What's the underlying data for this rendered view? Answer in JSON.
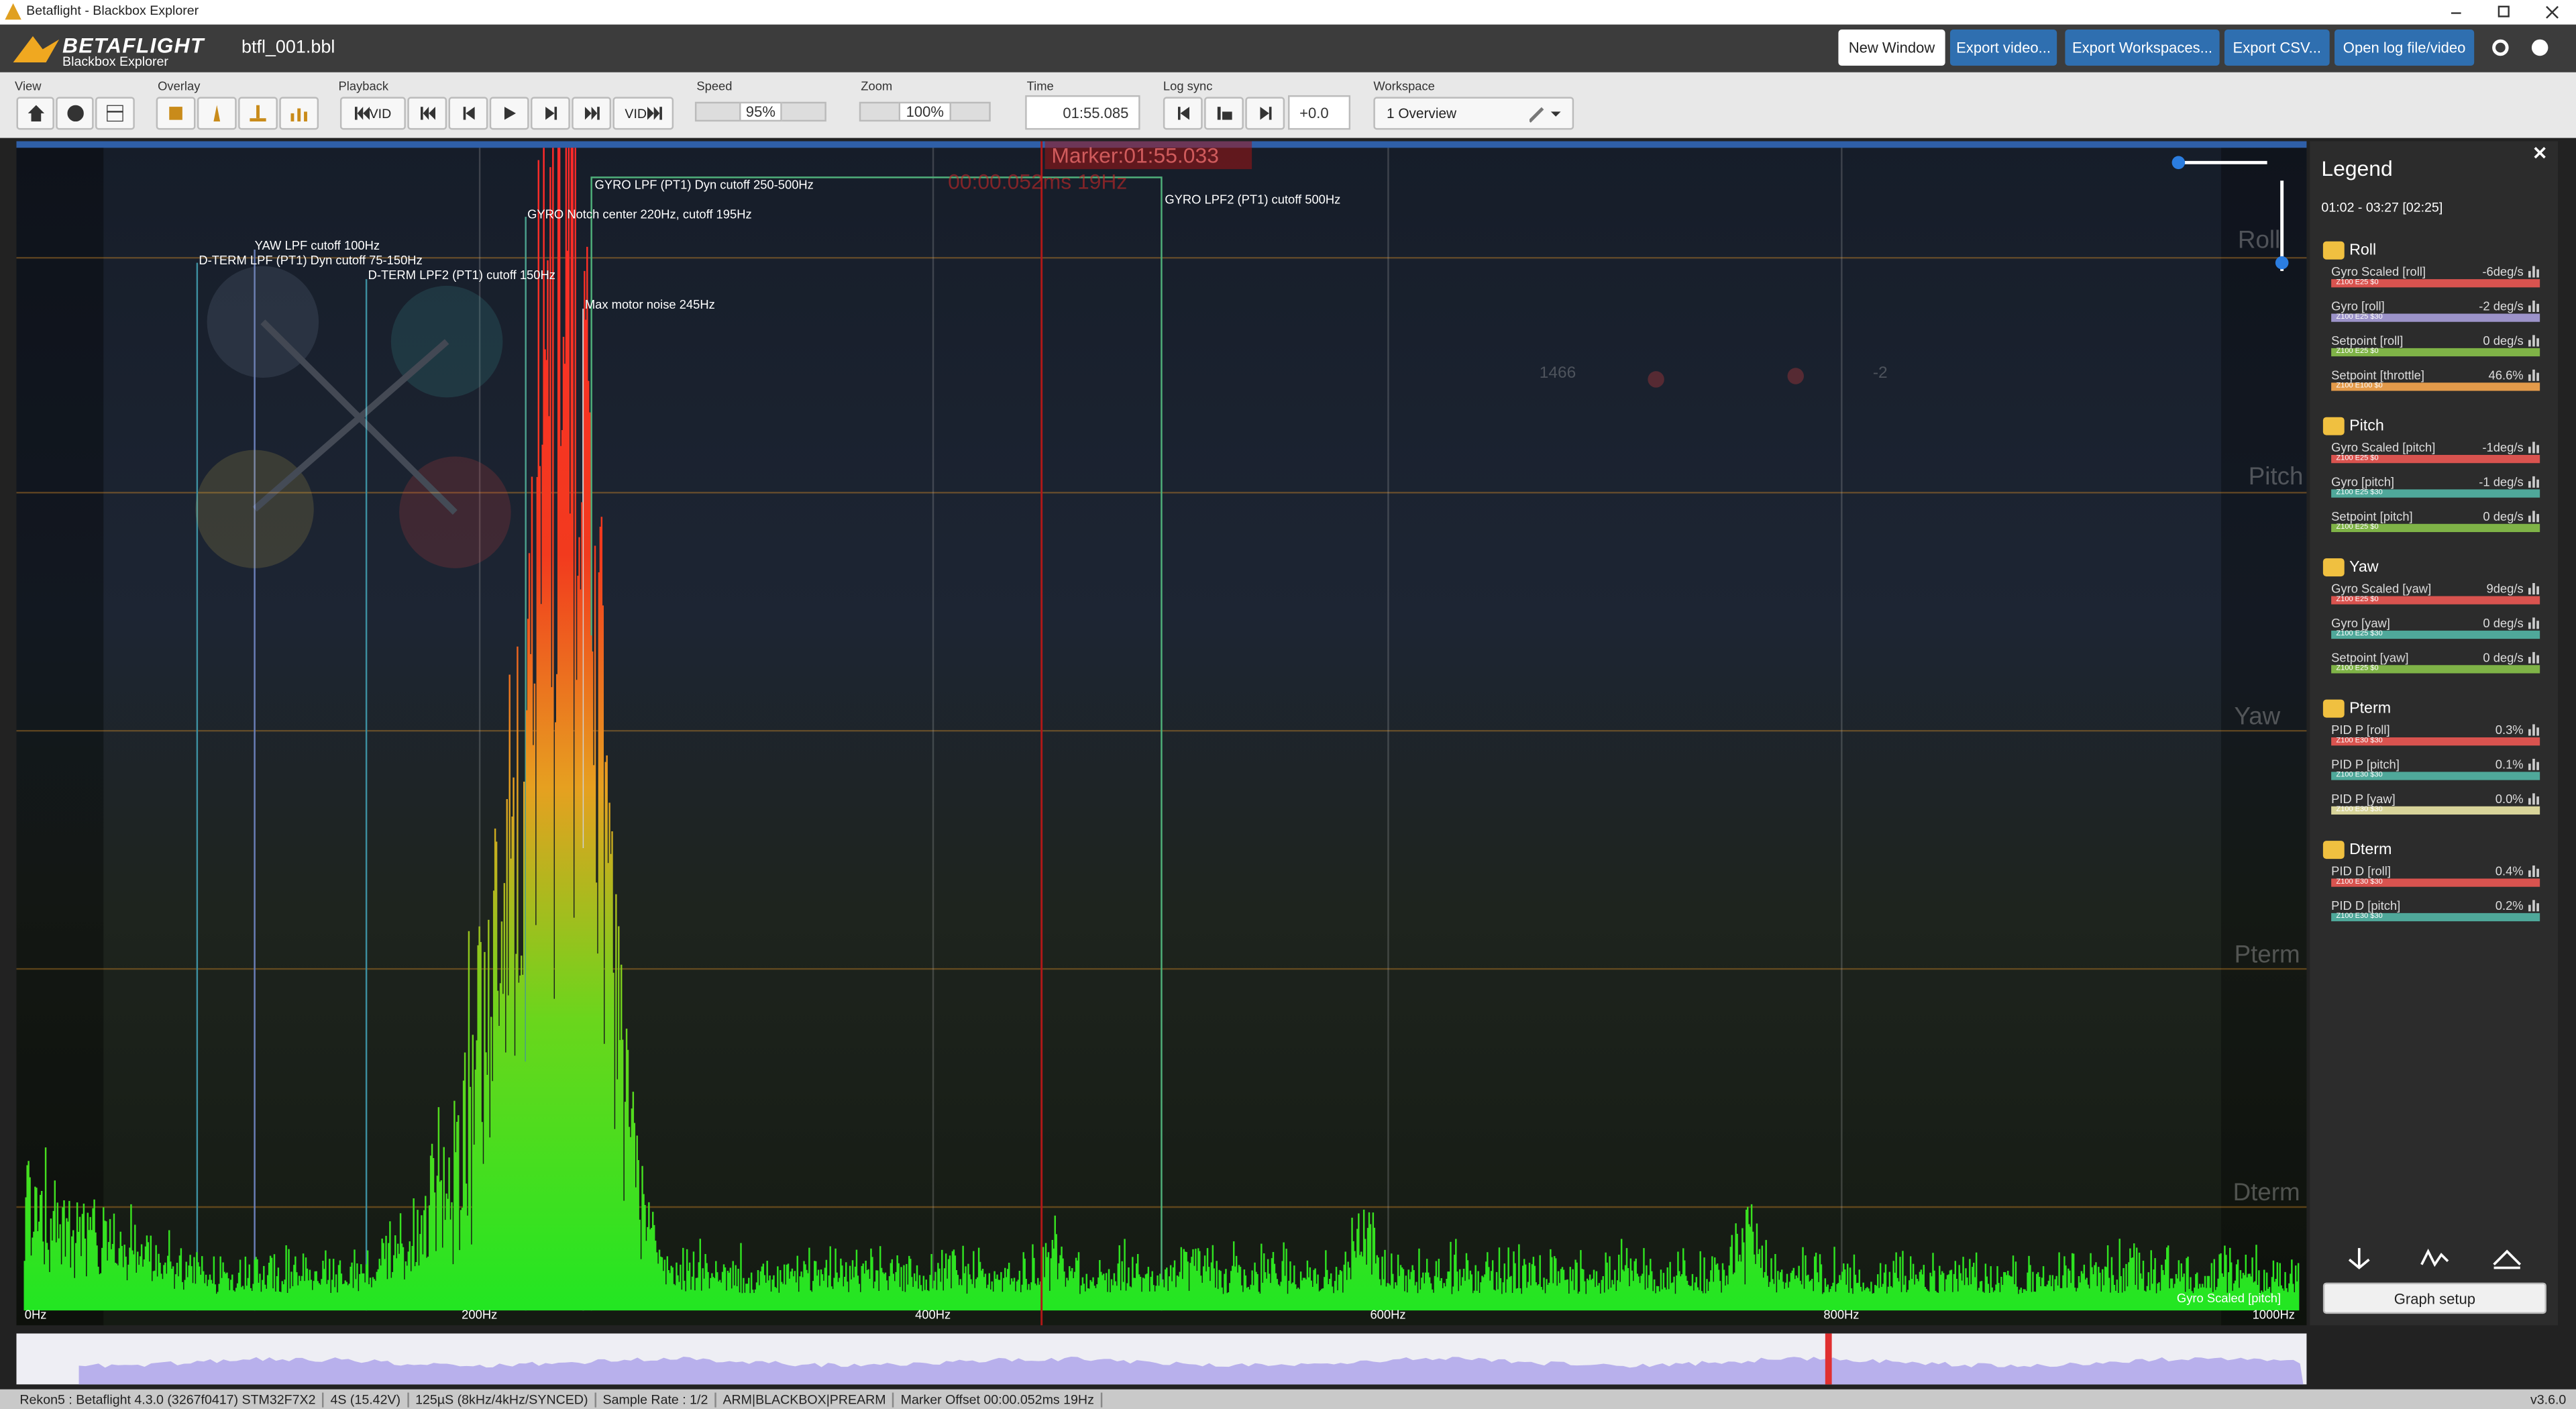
{
  "window": {
    "title": "Betaflight - Blackbox Explorer"
  },
  "header": {
    "logo": "BETAFLIGHT",
    "logo_sub": "Blackbox Explorer",
    "file": "btfl_001.bbl",
    "buttons": [
      "New Window",
      "Export video...",
      "Export Workspaces...",
      "Export CSV...",
      "Open log file/video"
    ]
  },
  "toolbar": {
    "view": "View",
    "overlay": "Overlay",
    "playback": "Playback",
    "vid_back": "VID",
    "vid_forward": "VID",
    "speed": {
      "label": "Speed",
      "value": "95%"
    },
    "zoom": {
      "label": "Zoom",
      "value": "100%"
    },
    "time": {
      "label": "Time",
      "value": "01:55.085"
    },
    "log_sync": {
      "label": "Log sync",
      "value": "+0.0"
    },
    "workspace": {
      "label": "Workspace",
      "value": "1 Overview"
    }
  },
  "graph": {
    "marker": "Marker:01:55.033",
    "marker_offset": "00:00.052ms 19Hz",
    "annotations": [
      "GYRO LPF (PT1) Dyn cutoff 250-500Hz",
      "GYRO LPF2 (PT1) cutoff 500Hz",
      "GYRO Notch center 220Hz, cutoff 195Hz",
      "YAW LPF cutoff 100Hz",
      "D-TERM LPF (PT1) Dyn cutoff 75-150Hz",
      "D-TERM LPF2 (PT1) cutoff 150Hz",
      "Max motor noise 245Hz"
    ],
    "x_labels": [
      "0Hz",
      "200Hz",
      "400Hz",
      "600Hz",
      "800Hz",
      "1000Hz"
    ],
    "series_label": "Gyro Scaled [pitch]",
    "overlay_labels": [
      "Roll",
      "Pitch",
      "Yaw",
      "Pterm",
      "Dterm"
    ],
    "stick_values": [
      "1466",
      "-2"
    ]
  },
  "legend": {
    "title": "Legend",
    "range": "01:02 - 03:27 [02:25]",
    "button": "Graph setup",
    "groups": [
      {
        "name": "Roll",
        "items": [
          {
            "name": "Gyro Scaled [roll]",
            "value": "-6deg/s",
            "scale": "Z100 E25 $0",
            "color": "#d9534f"
          },
          {
            "name": "Gyro [roll]",
            "value": "-2 deg/s",
            "scale": "Z100 E25 $30",
            "color": "#9c93c9"
          },
          {
            "name": "Setpoint [roll]",
            "value": "0 deg/s",
            "scale": "Z100 E25 $0",
            "color": "#7fb347"
          },
          {
            "name": "Setpoint [throttle]",
            "value": "46.6%",
            "scale": "Z100 E100 $0",
            "color": "#e39a4a"
          }
        ]
      },
      {
        "name": "Pitch",
        "items": [
          {
            "name": "Gyro Scaled [pitch]",
            "value": "-1deg/s",
            "scale": "Z100 E25 $0",
            "color": "#d9534f"
          },
          {
            "name": "Gyro [pitch]",
            "value": "-1 deg/s",
            "scale": "Z100 E25 $30",
            "color": "#4fa89a"
          },
          {
            "name": "Setpoint [pitch]",
            "value": "0 deg/s",
            "scale": "Z100 E25 $0",
            "color": "#7fb347"
          }
        ]
      },
      {
        "name": "Yaw",
        "items": [
          {
            "name": "Gyro Scaled [yaw]",
            "value": "9deg/s",
            "scale": "Z100 E25 $0",
            "color": "#d9534f"
          },
          {
            "name": "Gyro [yaw]",
            "value": "0 deg/s",
            "scale": "Z100 E25 $30",
            "color": "#4fa89a"
          },
          {
            "name": "Setpoint [yaw]",
            "value": "0 deg/s",
            "scale": "Z100 E25 $0",
            "color": "#7fb347"
          }
        ]
      },
      {
        "name": "Pterm",
        "items": [
          {
            "name": "PID P [roll]",
            "value": "0.3%",
            "scale": "Z100 E30 $30",
            "color": "#d9534f"
          },
          {
            "name": "PID P [pitch]",
            "value": "0.1%",
            "scale": "Z100 E30 $30",
            "color": "#4fa89a"
          },
          {
            "name": "PID P [yaw]",
            "value": "0.0%",
            "scale": "Z100 E30 $30",
            "color": "#d8d49a"
          }
        ]
      },
      {
        "name": "Dterm",
        "items": [
          {
            "name": "PID D [roll]",
            "value": "0.4%",
            "scale": "Z100 E30 $30",
            "color": "#d9534f"
          },
          {
            "name": "PID D [pitch]",
            "value": "0.2%",
            "scale": "Z100 E30 $30",
            "color": "#4fa89a"
          }
        ]
      }
    ]
  },
  "status": {
    "items": [
      "Rekon5 : Betaflight 4.3.0 (3267f0417) STM32F7X2",
      "4S (15.42V)",
      "125µS (8kHz/4kHz/SYNCED)",
      "Sample Rate : 1/2",
      "ARM|BLACKBOX|PREARM",
      "Marker Offset 00:00.052ms 19Hz"
    ],
    "version": "v3.6.0"
  }
}
